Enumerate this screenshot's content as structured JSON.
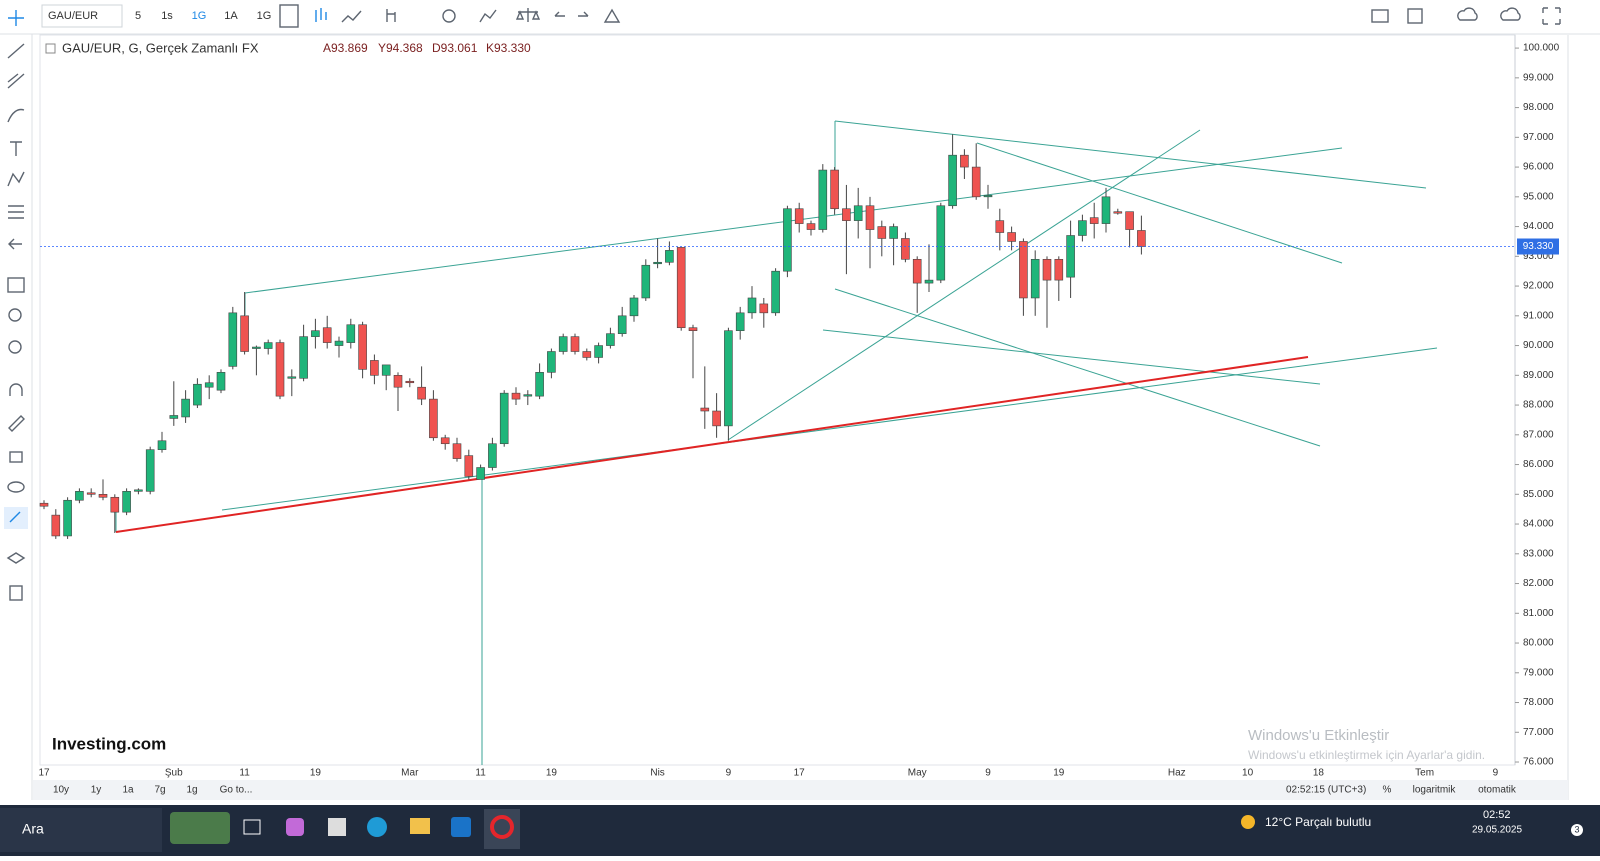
{
  "toolbar": {
    "symbol": "GAU/EUR",
    "intervals": [
      "5",
      "1s",
      "1G",
      "1A",
      "1G"
    ]
  },
  "chart_data": {
    "type": "candlestick",
    "title": "GAU/EUR, G, Gerçek Zamanlı FX",
    "ohlc_labels": [
      "A93.869",
      "Y94.368",
      "D93.061",
      "K93.330"
    ],
    "categories": [
      "17",
      null,
      null,
      null,
      null,
      null,
      null,
      null,
      null,
      null,
      null,
      "Şub",
      null,
      null,
      null,
      null,
      null,
      "11",
      null,
      null,
      null,
      null,
      null,
      "19",
      null,
      null,
      null,
      null,
      null,
      null,
      null,
      "Mar",
      null,
      null,
      null,
      null,
      null,
      "11",
      null,
      null,
      null,
      null,
      null,
      "19",
      null,
      null,
      null,
      null,
      null,
      null,
      null,
      null,
      "Nis",
      null,
      null,
      null,
      null,
      null,
      "9",
      null,
      null,
      null,
      null,
      null,
      "17",
      null,
      null,
      null,
      null,
      null,
      null,
      null,
      null,
      null,
      "May",
      null,
      null,
      null,
      null,
      null,
      "9",
      null,
      null,
      null,
      null,
      null,
      "19",
      null,
      null,
      null,
      null,
      null,
      null,
      null,
      null,
      null,
      "Haz",
      null,
      null,
      null,
      null,
      null,
      "10",
      null,
      null,
      null,
      null,
      null,
      "18",
      null,
      null,
      null,
      null,
      null,
      null,
      null,
      null,
      "Tem",
      null,
      null,
      null,
      null,
      null,
      "9"
    ],
    "candles": [
      [
        84.7,
        84.8,
        84.5,
        84.6
      ],
      [
        84.3,
        84.5,
        83.5,
        83.6
      ],
      [
        83.6,
        84.9,
        83.5,
        84.8
      ],
      [
        84.8,
        85.2,
        84.7,
        85.1
      ],
      [
        85.05,
        85.2,
        84.9,
        85.0
      ],
      [
        85.0,
        85.5,
        84.8,
        84.9
      ],
      [
        84.9,
        85.0,
        83.7,
        84.4
      ],
      [
        84.4,
        85.2,
        84.3,
        85.1
      ],
      [
        85.1,
        85.2,
        85.0,
        85.15
      ],
      [
        85.1,
        86.6,
        85.0,
        86.5
      ],
      [
        86.5,
        87.1,
        86.4,
        86.8
      ],
      [
        87.55,
        88.8,
        87.3,
        87.65
      ],
      [
        87.6,
        88.5,
        87.4,
        88.2
      ],
      [
        88.0,
        88.9,
        87.9,
        88.7
      ],
      [
        88.6,
        89.0,
        88.2,
        88.75
      ],
      [
        88.5,
        89.2,
        88.4,
        89.1
      ],
      [
        89.3,
        91.3,
        89.2,
        91.1
      ],
      [
        91.0,
        91.8,
        89.7,
        89.8
      ],
      [
        89.9,
        90.0,
        89.0,
        89.95
      ],
      [
        89.9,
        90.2,
        89.7,
        90.1
      ],
      [
        90.1,
        90.2,
        88.2,
        88.3
      ],
      [
        88.9,
        89.2,
        88.3,
        88.95
      ],
      [
        88.9,
        90.7,
        88.8,
        90.3
      ],
      [
        90.3,
        90.9,
        89.9,
        90.5
      ],
      [
        90.6,
        91.0,
        89.9,
        90.1
      ],
      [
        90.0,
        90.3,
        89.6,
        90.15
      ],
      [
        90.1,
        90.9,
        89.9,
        90.7
      ],
      [
        90.7,
        90.8,
        88.9,
        89.2
      ],
      [
        89.5,
        89.7,
        88.7,
        89.0
      ],
      [
        89.0,
        89.3,
        88.5,
        89.35
      ],
      [
        89.0,
        89.1,
        87.8,
        88.6
      ],
      [
        88.8,
        88.9,
        88.6,
        88.75
      ],
      [
        88.6,
        89.3,
        88.0,
        88.2
      ],
      [
        88.2,
        88.5,
        86.8,
        86.9
      ],
      [
        86.9,
        87.0,
        86.5,
        86.7
      ],
      [
        86.7,
        86.9,
        86.1,
        86.2
      ],
      [
        86.3,
        86.5,
        85.5,
        85.6
      ],
      [
        85.5,
        86.0,
        85.5,
        85.9
      ],
      [
        85.9,
        86.9,
        85.8,
        86.7
      ],
      [
        86.7,
        88.5,
        86.6,
        88.4
      ],
      [
        88.4,
        88.6,
        88.0,
        88.2
      ],
      [
        88.3,
        88.5,
        88.0,
        88.35
      ],
      [
        88.3,
        89.4,
        88.2,
        89.1
      ],
      [
        89.1,
        89.9,
        88.9,
        89.8
      ],
      [
        89.8,
        90.4,
        89.7,
        90.3
      ],
      [
        90.3,
        90.4,
        89.7,
        89.8
      ],
      [
        89.8,
        89.9,
        89.5,
        89.6
      ],
      [
        89.6,
        90.1,
        89.4,
        90.0
      ],
      [
        90.0,
        90.6,
        89.9,
        90.4
      ],
      [
        90.4,
        91.3,
        90.3,
        91.0
      ],
      [
        91.0,
        91.7,
        90.8,
        91.6
      ],
      [
        91.6,
        92.9,
        91.5,
        92.7
      ],
      [
        92.75,
        93.6,
        92.6,
        92.8
      ],
      [
        92.8,
        93.5,
        92.7,
        93.2
      ],
      [
        93.3,
        93.3,
        90.5,
        90.6
      ],
      [
        90.6,
        90.7,
        88.9,
        90.5
      ],
      [
        87.9,
        89.3,
        87.2,
        87.8
      ],
      [
        87.8,
        88.4,
        86.9,
        87.3
      ],
      [
        87.3,
        90.6,
        86.8,
        90.5
      ],
      [
        90.5,
        91.3,
        90.2,
        91.1
      ],
      [
        91.1,
        92.0,
        90.9,
        91.6
      ],
      [
        91.4,
        91.6,
        90.6,
        91.1
      ],
      [
        91.1,
        92.6,
        91.0,
        92.5
      ],
      [
        92.5,
        94.7,
        92.3,
        94.6
      ],
      [
        94.6,
        94.8,
        93.8,
        94.1
      ],
      [
        94.1,
        94.2,
        93.7,
        93.9
      ],
      [
        93.9,
        96.1,
        93.8,
        95.9
      ],
      [
        95.9,
        96.0,
        94.4,
        94.6
      ],
      [
        94.6,
        95.4,
        92.4,
        94.2
      ],
      [
        94.2,
        95.3,
        93.6,
        94.7
      ],
      [
        94.7,
        95.0,
        92.6,
        93.9
      ],
      [
        94.0,
        94.2,
        93.0,
        93.6
      ],
      [
        93.6,
        94.1,
        92.7,
        94.0
      ],
      [
        93.6,
        93.8,
        92.8,
        92.9
      ],
      [
        92.9,
        93.0,
        91.1,
        92.1
      ],
      [
        92.1,
        93.4,
        91.8,
        92.2
      ],
      [
        92.2,
        94.8,
        92.1,
        94.7
      ],
      [
        94.7,
        97.1,
        94.6,
        96.4
      ],
      [
        96.4,
        96.6,
        95.6,
        96.0
      ],
      [
        96.0,
        96.8,
        94.9,
        95.0
      ],
      [
        95.0,
        95.4,
        94.6,
        95.05
      ],
      [
        94.2,
        94.6,
        93.2,
        93.8
      ],
      [
        93.8,
        94.0,
        93.2,
        93.5
      ],
      [
        93.5,
        93.6,
        91.0,
        91.6
      ],
      [
        91.6,
        93.2,
        91.0,
        92.9
      ],
      [
        92.9,
        93.0,
        90.6,
        92.2
      ],
      [
        92.9,
        93.0,
        91.5,
        92.2
      ],
      [
        92.3,
        94.2,
        91.6,
        93.7
      ],
      [
        93.7,
        94.4,
        93.5,
        94.2
      ],
      [
        94.3,
        94.8,
        93.6,
        94.1
      ],
      [
        94.1,
        95.3,
        93.8,
        95.0
      ],
      [
        94.5,
        94.6,
        94.4,
        94.45
      ],
      [
        94.5,
        94.5,
        93.3,
        93.9
      ],
      [
        93.869,
        94.368,
        93.061,
        93.33
      ],
      null,
      null,
      null,
      null,
      null,
      null,
      null,
      null,
      null,
      null,
      null,
      null,
      null,
      null,
      null,
      null,
      null,
      null,
      null,
      null,
      null,
      null,
      null,
      null,
      null,
      null,
      null,
      null,
      null,
      null
    ],
    "up_color": "#1fb57a",
    "down_color": "#ef5350",
    "ylim": [
      75.9,
      100.44
    ],
    "yticks": [
      {
        "value": 76,
        "label": "76.000"
      },
      {
        "value": 77,
        "label": "77.000"
      },
      {
        "value": 78,
        "label": "78.000"
      },
      {
        "value": 79,
        "label": "79.000"
      },
      {
        "value": 80,
        "label": "80.000"
      },
      {
        "value": 81,
        "label": "81.000"
      },
      {
        "value": 82,
        "label": "82.000"
      },
      {
        "value": 83,
        "label": "83.000"
      },
      {
        "value": 84,
        "label": "84.000"
      },
      {
        "value": 85,
        "label": "85.000"
      },
      {
        "value": 86,
        "label": "86.000"
      },
      {
        "value": 87,
        "label": "87.000"
      },
      {
        "value": 88,
        "label": "88.000"
      },
      {
        "value": 89,
        "label": "89.000"
      },
      {
        "value": 90,
        "label": "90.000"
      },
      {
        "value": 91,
        "label": "91.000"
      },
      {
        "value": 92,
        "label": "92.000"
      },
      {
        "value": 93,
        "label": "93.000"
      },
      {
        "value": 94,
        "label": "94.000"
      },
      {
        "value": 95,
        "label": "95.000"
      },
      {
        "value": 96,
        "label": "96.000"
      },
      {
        "value": 97,
        "label": "97.000"
      },
      {
        "value": 98,
        "label": "98.000"
      },
      {
        "value": 99,
        "label": "99.000"
      },
      {
        "value": 100,
        "label": "100.000"
      }
    ],
    "last_price": {
      "value": 93.33,
      "label": "93.330"
    },
    "watermark": "Investing.com"
  },
  "bottom_bar": {
    "ranges": [
      "10y",
      "1y",
      "1a",
      "7g",
      "1g",
      "Go to..."
    ],
    "time": "02:52:15 (UTC+3)",
    "options": [
      "%",
      "logaritmik",
      "otomatik"
    ]
  },
  "activation": {
    "title": "Windows'u Etkinleştir",
    "text": "Windows'u etkinleştirmek için Ayarlar'a gidin."
  },
  "taskbar": {
    "search": "Ara",
    "weather": "12°C  Parçalı bulutlu",
    "time": "02:52",
    "date": "29.05.2025",
    "notifications": "3"
  }
}
